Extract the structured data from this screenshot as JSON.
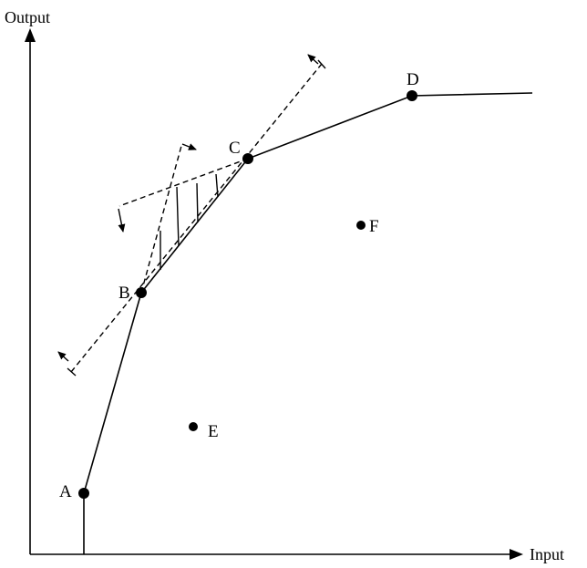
{
  "axes": {
    "y_label": "Output",
    "x_label": "Input"
  },
  "points": {
    "A": "A",
    "B": "B",
    "C": "C",
    "D": "D",
    "E": "E",
    "F": "F"
  }
}
